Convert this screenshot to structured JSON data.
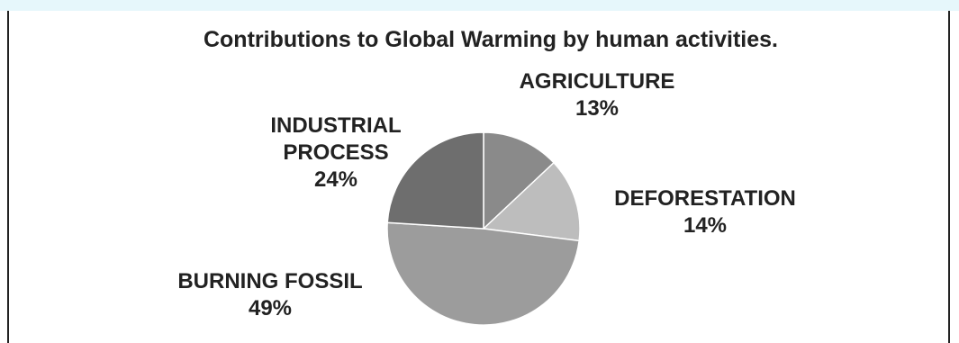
{
  "chart_data": {
    "type": "pie",
    "title": "Contributions to Global Warming by human activities.",
    "slices": [
      {
        "name_lines": [
          "AGRICULTURE"
        ],
        "value": 13,
        "value_label": "13%",
        "color": "#8a8a8a"
      },
      {
        "name_lines": [
          "DEFORESTATION"
        ],
        "value": 14,
        "value_label": "14%",
        "color": "#bdbdbd"
      },
      {
        "name_lines": [
          "BURNING FOSSIL"
        ],
        "value": 49,
        "value_label": "49%",
        "color": "#9c9c9c"
      },
      {
        "name_lines": [
          "INDUSTRIAL",
          "PROCESS"
        ],
        "value": 24,
        "value_label": "24%",
        "color": "#6e6e6e"
      }
    ],
    "start_angle_deg": 0,
    "direction": "clockwise",
    "legend": "none"
  }
}
